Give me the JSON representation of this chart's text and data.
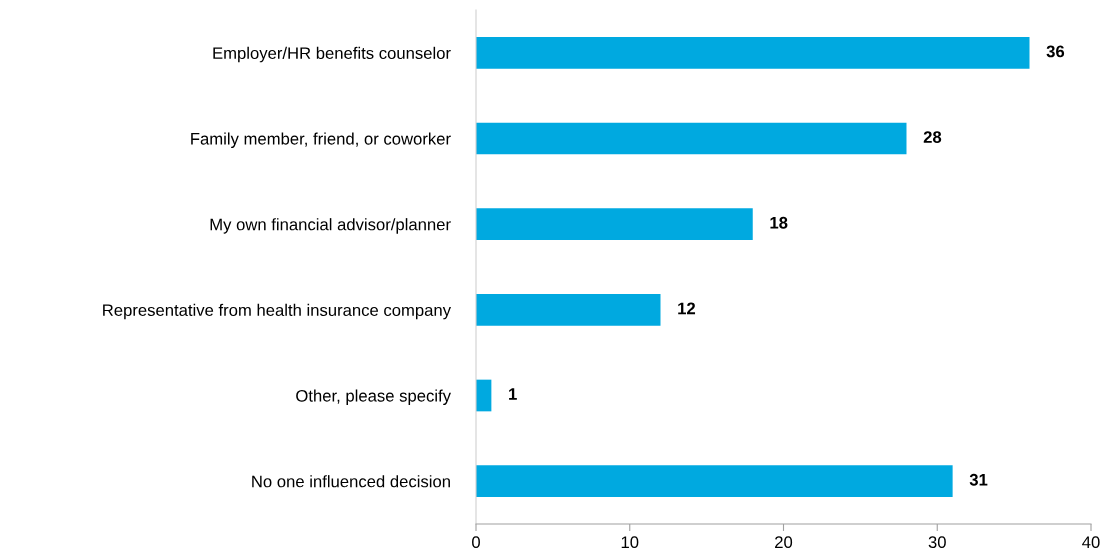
{
  "chart_data": {
    "type": "bar",
    "orientation": "horizontal",
    "categories": [
      "Employer/HR benefits counselor",
      "Family member, friend, or coworker",
      "My own financial advisor/planner",
      "Representative from health insurance company",
      "Other, please specify",
      "No one influenced decision"
    ],
    "values": [
      36,
      28,
      18,
      12,
      1,
      31
    ],
    "color": "#00a9e0",
    "xlim": [
      0,
      40
    ],
    "xticks": [
      0,
      10,
      20,
      30,
      40
    ],
    "data_labels": true,
    "grid": false,
    "legend": false
  }
}
